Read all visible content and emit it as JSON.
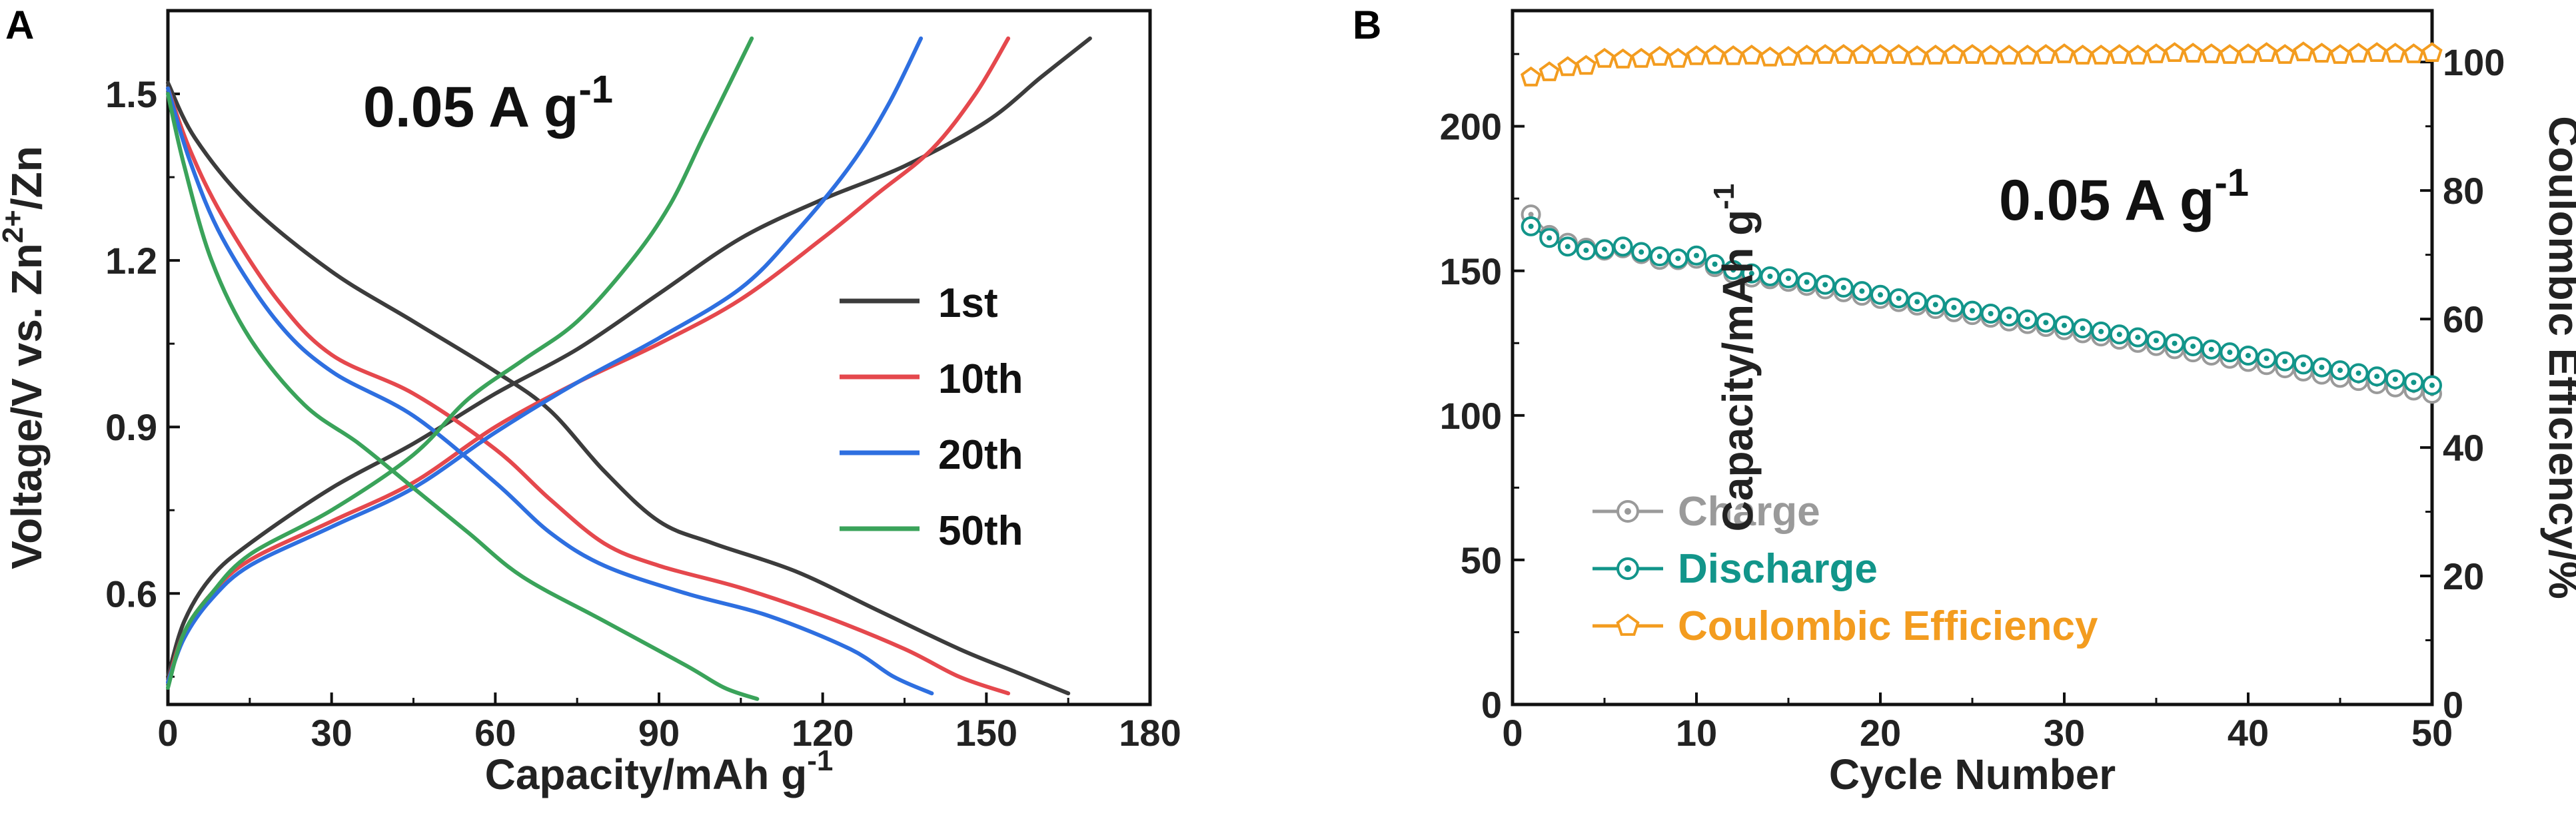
{
  "chart_data": [
    {
      "panel": "A",
      "type": "line",
      "annotation": {
        "main": "0.05 A g",
        "sup": "-1"
      },
      "xlabel": {
        "main": "Capacity/mAh g",
        "sup": "-1"
      },
      "ylabel": {
        "pre": "Voltage/V vs. Zn",
        "sup": "2+",
        "post": "/Zn"
      },
      "xlim": [
        0,
        180
      ],
      "ylim": [
        0.4,
        1.65
      ],
      "xticks": [
        0,
        30,
        60,
        90,
        120,
        150,
        180
      ],
      "xtick_labels": [
        "0",
        "30",
        "60",
        "90",
        "120",
        "150",
        "180"
      ],
      "yticks": [
        0.6,
        0.9,
        1.2,
        1.5
      ],
      "ytick_labels": [
        "0.6",
        "0.9",
        "1.2",
        "1.5"
      ],
      "legend_position": "center-right",
      "series": [
        {
          "name": "1st",
          "color": "#3c3c3c",
          "charge": [
            [
              0,
              0.45
            ],
            [
              3,
              0.55
            ],
            [
              8,
              0.63
            ],
            [
              15,
              0.69
            ],
            [
              30,
              0.79
            ],
            [
              45,
              0.87
            ],
            [
              60,
              0.96
            ],
            [
              75,
              1.04
            ],
            [
              90,
              1.14
            ],
            [
              105,
              1.24
            ],
            [
              120,
              1.31
            ],
            [
              135,
              1.37
            ],
            [
              150,
              1.45
            ],
            [
              160,
              1.53
            ],
            [
              169,
              1.6
            ]
          ],
          "discharge": [
            [
              0,
              1.52
            ],
            [
              5,
              1.42
            ],
            [
              15,
              1.3
            ],
            [
              30,
              1.18
            ],
            [
              45,
              1.09
            ],
            [
              60,
              1.0
            ],
            [
              70,
              0.93
            ],
            [
              80,
              0.82
            ],
            [
              90,
              0.73
            ],
            [
              100,
              0.69
            ],
            [
              115,
              0.64
            ],
            [
              130,
              0.57
            ],
            [
              145,
              0.5
            ],
            [
              155,
              0.46
            ],
            [
              165,
              0.42
            ]
          ]
        },
        {
          "name": "10th",
          "color": "#e5484d",
          "charge": [
            [
              0,
              0.44
            ],
            [
              3,
              0.53
            ],
            [
              8,
              0.6
            ],
            [
              15,
              0.66
            ],
            [
              30,
              0.73
            ],
            [
              45,
              0.8
            ],
            [
              60,
              0.9
            ],
            [
              75,
              0.98
            ],
            [
              90,
              1.05
            ],
            [
              105,
              1.13
            ],
            [
              120,
              1.24
            ],
            [
              130,
              1.32
            ],
            [
              140,
              1.4
            ],
            [
              148,
              1.5
            ],
            [
              154,
              1.6
            ]
          ],
          "discharge": [
            [
              0,
              1.51
            ],
            [
              4,
              1.4
            ],
            [
              10,
              1.28
            ],
            [
              20,
              1.13
            ],
            [
              30,
              1.03
            ],
            [
              45,
              0.96
            ],
            [
              60,
              0.86
            ],
            [
              70,
              0.77
            ],
            [
              80,
              0.69
            ],
            [
              90,
              0.65
            ],
            [
              105,
              0.61
            ],
            [
              120,
              0.56
            ],
            [
              135,
              0.5
            ],
            [
              145,
              0.45
            ],
            [
              154,
              0.42
            ]
          ]
        },
        {
          "name": "20th",
          "color": "#2e6fe0",
          "charge": [
            [
              0,
              0.44
            ],
            [
              3,
              0.52
            ],
            [
              8,
              0.59
            ],
            [
              15,
              0.65
            ],
            [
              30,
              0.72
            ],
            [
              45,
              0.79
            ],
            [
              60,
              0.89
            ],
            [
              75,
              0.98
            ],
            [
              90,
              1.06
            ],
            [
              105,
              1.15
            ],
            [
              115,
              1.25
            ],
            [
              125,
              1.37
            ],
            [
              132,
              1.48
            ],
            [
              138,
              1.6
            ]
          ],
          "discharge": [
            [
              0,
              1.51
            ],
            [
              4,
              1.38
            ],
            [
              10,
              1.24
            ],
            [
              20,
              1.09
            ],
            [
              30,
              1.0
            ],
            [
              45,
              0.92
            ],
            [
              60,
              0.8
            ],
            [
              70,
              0.71
            ],
            [
              80,
              0.65
            ],
            [
              95,
              0.6
            ],
            [
              110,
              0.56
            ],
            [
              125,
              0.5
            ],
            [
              133,
              0.45
            ],
            [
              140,
              0.42
            ]
          ]
        },
        {
          "name": "50th",
          "color": "#3aa35a",
          "charge": [
            [
              0,
              0.43
            ],
            [
              3,
              0.53
            ],
            [
              8,
              0.6
            ],
            [
              15,
              0.67
            ],
            [
              30,
              0.75
            ],
            [
              45,
              0.85
            ],
            [
              55,
              0.95
            ],
            [
              65,
              1.02
            ],
            [
              75,
              1.09
            ],
            [
              85,
              1.2
            ],
            [
              92,
              1.3
            ],
            [
              98,
              1.42
            ],
            [
              103,
              1.52
            ],
            [
              107,
              1.6
            ]
          ],
          "discharge": [
            [
              0,
              1.5
            ],
            [
              3,
              1.37
            ],
            [
              8,
              1.2
            ],
            [
              15,
              1.06
            ],
            [
              25,
              0.94
            ],
            [
              35,
              0.87
            ],
            [
              45,
              0.79
            ],
            [
              55,
              0.71
            ],
            [
              65,
              0.63
            ],
            [
              80,
              0.55
            ],
            [
              95,
              0.47
            ],
            [
              102,
              0.43
            ],
            [
              108,
              0.41
            ]
          ]
        }
      ]
    },
    {
      "panel": "B",
      "type": "scatter",
      "annotation": {
        "main": "0.05 A g",
        "sup": "-1"
      },
      "xlabel": "Cycle  Number",
      "ylabel_left": {
        "main": "Capacity/mAh g",
        "sup": "-1"
      },
      "ylabel_right": "Coulombic Efficiency/%",
      "xlim": [
        0,
        50
      ],
      "ylim_left": [
        0,
        240
      ],
      "ylim_right": [
        0,
        108
      ],
      "xticks": [
        0,
        10,
        20,
        30,
        40,
        50
      ],
      "xtick_labels": [
        "0",
        "10",
        "20",
        "30",
        "40",
        "50"
      ],
      "yticks_left": [
        0,
        50,
        100,
        150,
        200
      ],
      "ytick_labels_left": [
        "0",
        "50",
        "100",
        "150",
        "200"
      ],
      "yticks_right": [
        0,
        20,
        40,
        60,
        80,
        100
      ],
      "ytick_labels_right": [
        "0",
        "20",
        "40",
        "60",
        "80",
        "100"
      ],
      "legend_position": "bottom-left",
      "cycles": [
        1,
        2,
        3,
        4,
        5,
        6,
        7,
        8,
        9,
        10,
        11,
        12,
        13,
        14,
        15,
        16,
        17,
        18,
        19,
        20,
        21,
        22,
        23,
        24,
        25,
        26,
        27,
        28,
        29,
        30,
        31,
        32,
        33,
        34,
        35,
        36,
        37,
        38,
        39,
        40,
        41,
        42,
        43,
        44,
        45,
        46,
        47,
        48,
        49,
        50
      ],
      "series": [
        {
          "name": "Charge",
          "color": "#9a9a9a",
          "axis": "left",
          "marker": "circle",
          "values": [
            169.5,
            162.4,
            159.7,
            158.0,
            157.0,
            157.8,
            155.8,
            153.8,
            153.7,
            154.2,
            151.3,
            149.0,
            147.7,
            147.1,
            146.2,
            144.8,
            143.6,
            142.6,
            141.4,
            140.3,
            139.2,
            138.0,
            136.8,
            135.7,
            134.7,
            133.8,
            132.5,
            131.6,
            130.6,
            129.5,
            128.4,
            127.3,
            126.2,
            125.1,
            124.0,
            122.9,
            121.8,
            120.7,
            119.6,
            118.5,
            117.4,
            116.3,
            115.2,
            114.1,
            113.0,
            111.9,
            110.8,
            109.7,
            108.6,
            107.5
          ]
        },
        {
          "name": "Discharge",
          "color": "#12958a",
          "axis": "left",
          "marker": "circle",
          "values": [
            165.4,
            161.4,
            158.4,
            157.1,
            157.5,
            158.4,
            156.5,
            155.0,
            154.3,
            155.3,
            152.3,
            150.3,
            149.1,
            148.1,
            147.4,
            146.1,
            145.2,
            144.2,
            143.0,
            141.7,
            140.5,
            139.3,
            138.3,
            137.3,
            136.2,
            135.2,
            134.2,
            133.2,
            132.1,
            131.1,
            130.1,
            129.0,
            128.0,
            127.0,
            125.9,
            124.9,
            123.9,
            122.8,
            121.8,
            120.7,
            119.7,
            118.7,
            117.6,
            116.6,
            115.6,
            114.6,
            113.5,
            112.5,
            111.4,
            110.4
          ]
        },
        {
          "name": "Coulombic Efficiency",
          "color": "#f39c1f",
          "axis": "right",
          "marker": "pentagon",
          "values": [
            97.6,
            98.4,
            99.2,
            99.4,
            100.5,
            100.4,
            100.5,
            100.8,
            100.5,
            100.9,
            101.0,
            100.9,
            101.0,
            100.7,
            100.8,
            101.0,
            101.1,
            101.1,
            101.1,
            101.1,
            101.1,
            100.9,
            101.0,
            101.1,
            101.1,
            101.0,
            101.0,
            101.0,
            101.1,
            101.2,
            101.0,
            101.0,
            101.1,
            101.0,
            101.2,
            101.4,
            101.3,
            101.2,
            101.1,
            101.2,
            101.4,
            101.1,
            101.5,
            101.3,
            101.1,
            101.3,
            101.4,
            101.3,
            101.2,
            101.4
          ]
        }
      ]
    }
  ]
}
